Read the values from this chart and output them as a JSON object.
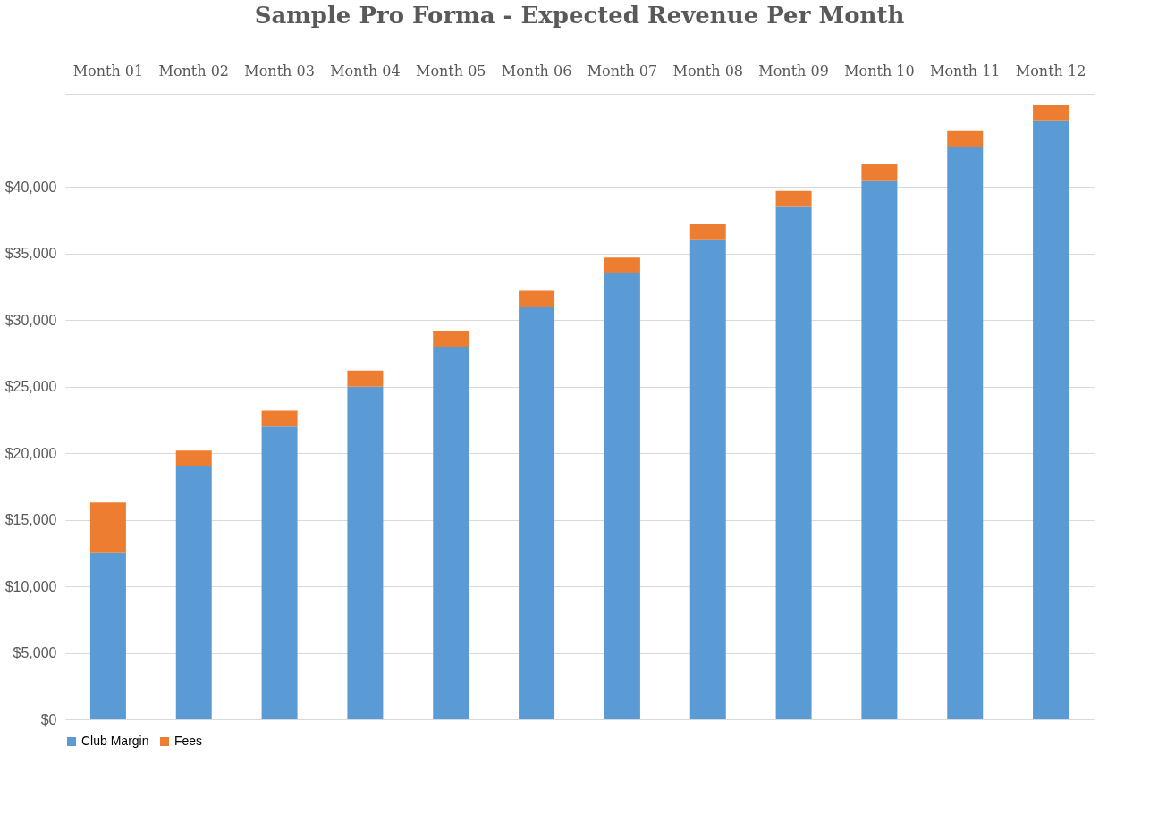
{
  "chart_data": {
    "type": "bar",
    "title": "Sample Pro Forma - Expected Revenue Per Month",
    "stacked": true,
    "categories": [
      "Month 01",
      "Month 02",
      "Month 03",
      "Month 04",
      "Month 05",
      "Month 06",
      "Month 07",
      "Month 08",
      "Month 09",
      "Month 10",
      "Month 11",
      "Month 12"
    ],
    "series": [
      {
        "name": "Club Margin",
        "color": "#5b9bd5",
        "values": [
          12500,
          19000,
          22000,
          25000,
          28000,
          31000,
          33500,
          36000,
          38500,
          40500,
          43000,
          45000
        ]
      },
      {
        "name": "Fees",
        "color": "#ed7d31",
        "values": [
          3800,
          1200,
          1200,
          1200,
          1200,
          1200,
          1200,
          1200,
          1200,
          1200,
          1200,
          1200
        ]
      }
    ],
    "ylim": [
      0,
      47000
    ],
    "yticks": [
      {
        "value": 0,
        "label": "$0"
      },
      {
        "value": 5000,
        "label": "$5,000"
      },
      {
        "value": 10000,
        "label": "$10,000"
      },
      {
        "value": 15000,
        "label": "$15,000"
      },
      {
        "value": 20000,
        "label": "$20,000"
      },
      {
        "value": 25000,
        "label": "$25,000"
      },
      {
        "value": 30000,
        "label": "$30,000"
      },
      {
        "value": 35000,
        "label": "$35,000"
      },
      {
        "value": 40000,
        "label": "$40,000"
      }
    ],
    "grid": "y",
    "legend": "bottom"
  }
}
